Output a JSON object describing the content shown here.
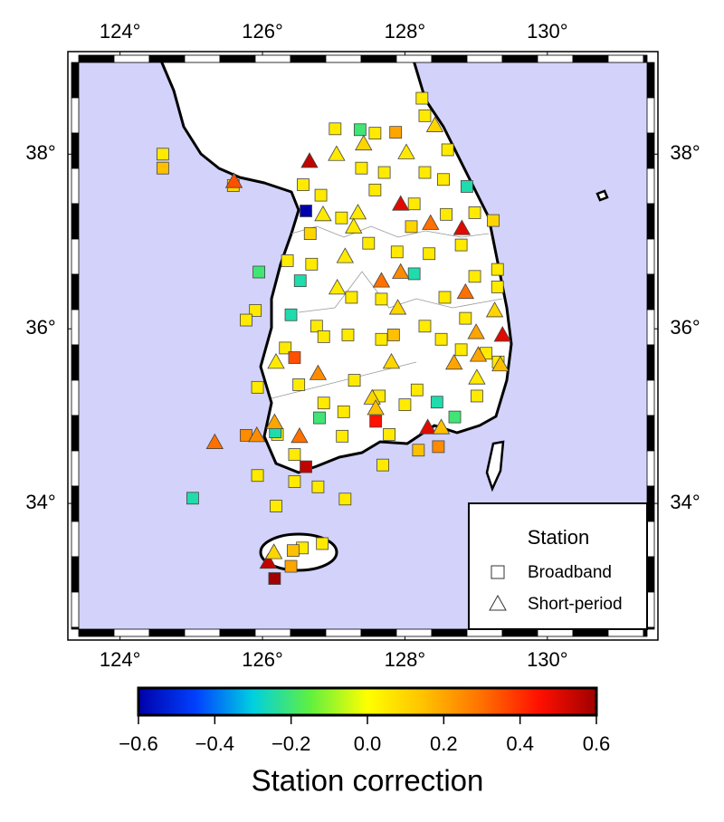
{
  "chart_data": {
    "type": "map",
    "xlim": [
      123.42,
      131.4
    ],
    "ylim": [
      32.56,
      39.05
    ],
    "xticks": [
      {
        "value": 124,
        "label": "124°"
      },
      {
        "value": 126,
        "label": "126°"
      },
      {
        "value": 128,
        "label": "128°"
      },
      {
        "value": 130,
        "label": "130°"
      }
    ],
    "yticks": [
      {
        "value": 34,
        "label": "34°"
      },
      {
        "value": 36,
        "label": "36°"
      },
      {
        "value": 38,
        "label": "38°"
      }
    ],
    "legend_title": "Station",
    "legend_position": "lower right",
    "colorbar": {
      "label": "Station correction",
      "lim": [
        -0.6,
        0.6
      ],
      "ticks": [
        {
          "value": -0.6,
          "label": "−0.6"
        },
        {
          "value": -0.4,
          "label": "−0.4"
        },
        {
          "value": -0.2,
          "label": "−0.2"
        },
        {
          "value": 0,
          "label": "0.0"
        },
        {
          "value": 0.2,
          "label": "0.2"
        },
        {
          "value": 0.4,
          "label": "0.4"
        },
        {
          "value": 0.6,
          "label": "0.6"
        }
      ],
      "colormap": [
        "#0000aa",
        "#0040ff",
        "#00d0e0",
        "#60f040",
        "#ffff00",
        "#ffc000",
        "#ff7000",
        "#ff1000",
        "#a00000"
      ]
    },
    "series": [
      {
        "name": "Broadband",
        "marker": "square",
        "x": [
          124.6,
          124.6,
          125.59,
          127.37,
          127.02,
          127.58,
          127.87,
          128.24,
          128.28,
          127.39,
          127.71,
          128.28,
          128.6,
          128.54,
          128.87,
          126.57,
          126.61,
          126.67,
          126.82,
          127.11,
          127.58,
          128.13,
          128.58,
          128.98,
          129.24,
          128.09,
          128.79,
          127.49,
          127.89,
          128.34,
          126.35,
          126.69,
          125.95,
          126.53,
          127.25,
          127.67,
          128.13,
          128.56,
          128.98,
          129.3,
          129.3,
          125.9,
          125.77,
          126.4,
          126.76,
          126.86,
          127.2,
          127.67,
          127.84,
          128.28,
          128.51,
          128.85,
          128.79,
          129.14,
          129.31,
          126.32,
          126.45,
          126.51,
          125.93,
          126.86,
          127.29,
          127.64,
          128.17,
          128.45,
          129.01,
          128.7,
          126.8,
          127.14,
          127.59,
          127.78,
          128.0,
          125.77,
          126.21,
          126.18,
          127.12,
          127.69,
          128.19,
          128.47,
          125.93,
          126.45,
          126.45,
          126.78,
          126.19,
          125.02,
          127.16,
          126.84,
          126.56,
          126.43,
          126.4,
          126.17,
          126.61
        ],
        "y": [
          38.0,
          37.84,
          37.64,
          38.28,
          38.29,
          38.24,
          38.25,
          38.64,
          38.44,
          37.84,
          37.79,
          37.79,
          38.05,
          37.71,
          37.63,
          37.65,
          37.35,
          37.09,
          37.53,
          37.27,
          37.59,
          37.43,
          37.31,
          37.33,
          37.24,
          37.17,
          36.96,
          36.98,
          36.88,
          36.86,
          36.78,
          36.74,
          36.65,
          36.55,
          36.36,
          36.34,
          36.63,
          36.36,
          36.6,
          36.68,
          36.48,
          36.21,
          36.1,
          36.16,
          36.03,
          35.91,
          35.93,
          35.88,
          35.93,
          36.03,
          35.88,
          36.12,
          35.76,
          35.72,
          35.62,
          35.78,
          35.67,
          35.36,
          35.33,
          35.15,
          35.41,
          35.23,
          35.3,
          35.16,
          35.23,
          34.99,
          34.98,
          35.05,
          34.94,
          34.79,
          35.13,
          34.78,
          34.79,
          34.82,
          34.77,
          34.44,
          34.61,
          34.65,
          34.32,
          34.25,
          34.56,
          34.19,
          33.97,
          34.06,
          34.05,
          33.54,
          33.49,
          33.46,
          33.28,
          33.14,
          34.42
        ],
        "values": [
          0.05,
          0.15,
          0.1,
          -0.2,
          0.05,
          0.05,
          0.2,
          0.05,
          0.05,
          0.05,
          0.05,
          0.05,
          0.05,
          0.05,
          -0.25,
          0.05,
          -0.6,
          0.1,
          0.05,
          0.05,
          0.05,
          0.05,
          0.05,
          0.05,
          0.1,
          0.1,
          0.05,
          0.05,
          0.05,
          0.05,
          0.05,
          0.05,
          -0.2,
          -0.25,
          0.05,
          0.05,
          -0.25,
          0.05,
          0.05,
          0.05,
          0.05,
          0.05,
          0.05,
          -0.25,
          0.05,
          0.05,
          0.05,
          0.05,
          0.15,
          0.05,
          0.05,
          0.05,
          0.05,
          0.05,
          0.05,
          0.05,
          0.35,
          0.05,
          0.05,
          0.05,
          0.05,
          0.05,
          0.05,
          -0.25,
          0.05,
          -0.2,
          -0.2,
          0.05,
          0.45,
          0.05,
          0.05,
          0.25,
          0.05,
          -0.25,
          0.05,
          0.05,
          0.15,
          0.25,
          0.05,
          0.05,
          0.05,
          0.05,
          0.05,
          -0.25,
          0.05,
          0.05,
          0.05,
          0.15,
          0.2,
          0.6,
          0.55
        ]
      },
      {
        "name": "Short-period",
        "marker": "triangle",
        "x": [
          125.6,
          126.66,
          127.04,
          127.42,
          128.42,
          128.02,
          127.94,
          126.85,
          127.34,
          127.28,
          128.36,
          128.8,
          127.16,
          127.94,
          127.67,
          127.05,
          128.85,
          127.9,
          129.26,
          129.37,
          129.0,
          126.19,
          126.78,
          127.81,
          128.69,
          129.03,
          129.34,
          129.01,
          127.54,
          127.59,
          126.17,
          126.52,
          125.92,
          125.33,
          128.32,
          128.51,
          126.08,
          126.16
        ],
        "y": [
          37.69,
          37.92,
          38.0,
          38.12,
          38.33,
          38.02,
          37.43,
          37.31,
          37.33,
          37.17,
          37.21,
          37.15,
          36.83,
          36.65,
          36.55,
          36.47,
          36.42,
          36.24,
          36.21,
          35.93,
          35.96,
          35.62,
          35.49,
          35.62,
          35.61,
          35.7,
          35.59,
          35.44,
          35.21,
          35.09,
          34.93,
          34.77,
          34.78,
          34.7,
          34.87,
          34.87,
          33.33,
          33.44
        ],
        "values": [
          0.35,
          0.55,
          0.05,
          0.1,
          0.1,
          0.05,
          0.5,
          0.05,
          0.05,
          0.05,
          0.3,
          0.5,
          0.05,
          0.25,
          0.3,
          0.05,
          0.3,
          0.1,
          0.1,
          0.5,
          0.2,
          0.05,
          0.25,
          0.1,
          0.2,
          0.2,
          0.15,
          0.05,
          0.1,
          0.15,
          0.2,
          0.3,
          0.25,
          0.3,
          0.5,
          0.15,
          0.55,
          0.1
        ]
      }
    ]
  }
}
